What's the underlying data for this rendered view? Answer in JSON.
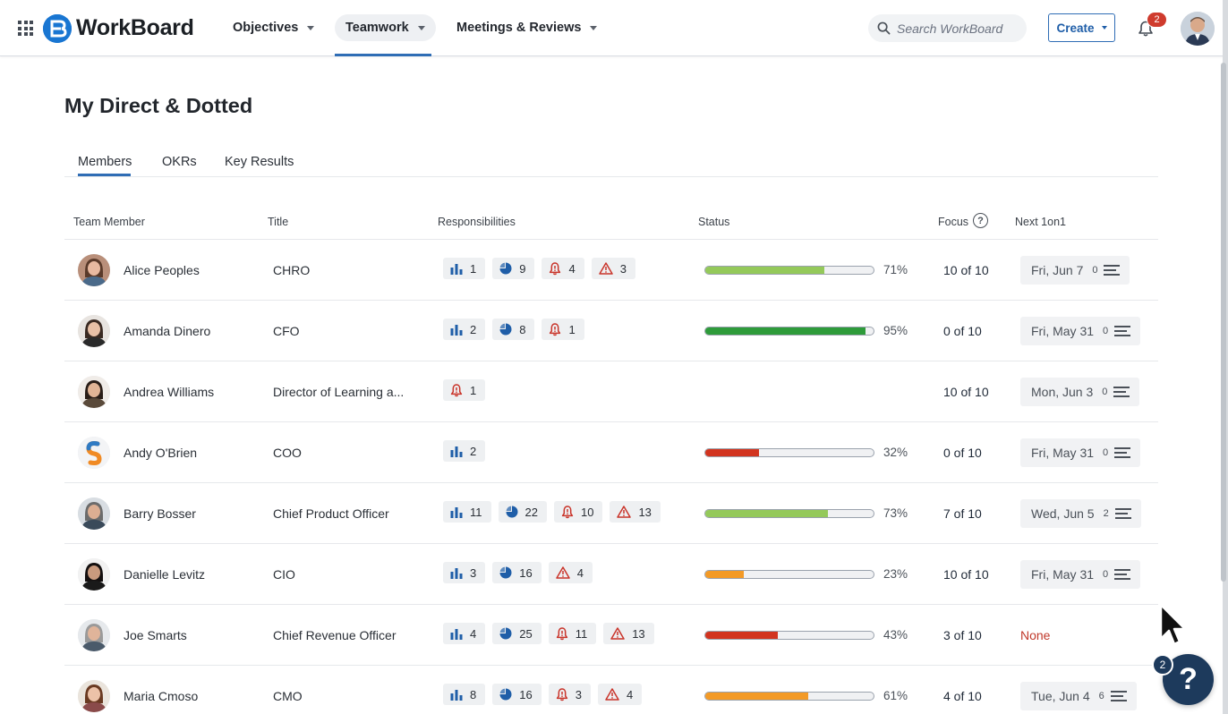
{
  "header": {
    "app_name": "WorkBoard",
    "nav": [
      {
        "label": "Objectives"
      },
      {
        "label": "Teamwork"
      },
      {
        "label": "Meetings & Reviews"
      }
    ],
    "search_placeholder": "Search WorkBoard",
    "create_label": "Create",
    "notification_count": "2"
  },
  "page": {
    "title": "My Direct & Dotted",
    "tabs": [
      {
        "label": "Members"
      },
      {
        "label": "OKRs"
      },
      {
        "label": "Key Results"
      }
    ]
  },
  "table": {
    "columns": {
      "member": "Team Member",
      "title": "Title",
      "responsibilities": "Responsibilities",
      "status": "Status",
      "focus": "Focus",
      "next1on1": "Next 1on1"
    },
    "rows": [
      {
        "name": "Alice Peoples",
        "title": "CHRO",
        "resp": [
          {
            "icon": "bar-chart-icon",
            "v": "1"
          },
          {
            "icon": "pie-chart-icon",
            "v": "9"
          },
          {
            "icon": "bell-alert-icon",
            "v": "4"
          },
          {
            "icon": "warning-icon",
            "v": "3"
          }
        ],
        "status": 0.71,
        "status_label": "71%",
        "status_color": "#94c95a",
        "focus": "10 of 10",
        "next_date": "Fri, Jun 7",
        "next_count": "0"
      },
      {
        "name": "Amanda Dinero",
        "title": "CFO",
        "resp": [
          {
            "icon": "bar-chart-icon",
            "v": "2"
          },
          {
            "icon": "pie-chart-icon",
            "v": "8"
          },
          {
            "icon": "bell-alert-icon",
            "v": "1"
          }
        ],
        "status": 0.95,
        "status_label": "95%",
        "status_color": "#2e9b3a",
        "focus": "0 of 10",
        "next_date": "Fri, May 31",
        "next_count": "0"
      },
      {
        "name": "Andrea Williams",
        "title": "Director of Learning a...",
        "resp": [
          {
            "icon": "bell-alert-icon",
            "v": "1"
          }
        ],
        "status": null,
        "status_label": "",
        "status_color": "",
        "focus": "10 of 10",
        "next_date": "Mon, Jun 3",
        "next_count": "0"
      },
      {
        "name": "Andy O'Brien",
        "title": "COO",
        "resp": [
          {
            "icon": "bar-chart-icon",
            "v": "2"
          }
        ],
        "status": 0.32,
        "status_label": "32%",
        "status_color": "#d2341f",
        "focus": "0 of 10",
        "next_date": "Fri, May 31",
        "next_count": "0"
      },
      {
        "name": "Barry Bosser",
        "title": "Chief Product Officer",
        "resp": [
          {
            "icon": "bar-chart-icon",
            "v": "11"
          },
          {
            "icon": "pie-chart-icon",
            "v": "22"
          },
          {
            "icon": "bell-alert-icon",
            "v": "10"
          },
          {
            "icon": "warning-icon",
            "v": "13"
          }
        ],
        "status": 0.73,
        "status_label": "73%",
        "status_color": "#94c95a",
        "focus": "7 of 10",
        "next_date": "Wed, Jun 5",
        "next_count": "2"
      },
      {
        "name": "Danielle Levitz",
        "title": "CIO",
        "resp": [
          {
            "icon": "bar-chart-icon",
            "v": "3"
          },
          {
            "icon": "pie-chart-icon",
            "v": "16"
          },
          {
            "icon": "warning-icon",
            "v": "4"
          }
        ],
        "status": 0.23,
        "status_label": "23%",
        "status_color": "#f39a26",
        "focus": "10 of 10",
        "next_date": "Fri, May 31",
        "next_count": "0"
      },
      {
        "name": "Joe Smarts",
        "title": "Chief Revenue Officer",
        "resp": [
          {
            "icon": "bar-chart-icon",
            "v": "4"
          },
          {
            "icon": "pie-chart-icon",
            "v": "25"
          },
          {
            "icon": "bell-alert-icon",
            "v": "11"
          },
          {
            "icon": "warning-icon",
            "v": "13"
          }
        ],
        "status": 0.43,
        "status_label": "43%",
        "status_color": "#d2341f",
        "focus": "3 of 10",
        "next_date": "",
        "next_count": "",
        "next_none": "None"
      },
      {
        "name": "Maria Cmoso",
        "title": "CMO",
        "resp": [
          {
            "icon": "bar-chart-icon",
            "v": "8"
          },
          {
            "icon": "pie-chart-icon",
            "v": "16"
          },
          {
            "icon": "bell-alert-icon",
            "v": "3"
          },
          {
            "icon": "warning-icon",
            "v": "4"
          }
        ],
        "status": 0.61,
        "status_label": "61%",
        "status_color": "#f39a26",
        "focus": "4 of 10",
        "next_date": "Tue, Jun 4",
        "next_count": "6"
      }
    ]
  },
  "help": {
    "label": "?",
    "badge": "2"
  },
  "colors": {
    "accent": "#2f6db5",
    "brand": "#1976d2",
    "alert": "#cf3b2d",
    "icon_blue": "#1f5ea8"
  }
}
